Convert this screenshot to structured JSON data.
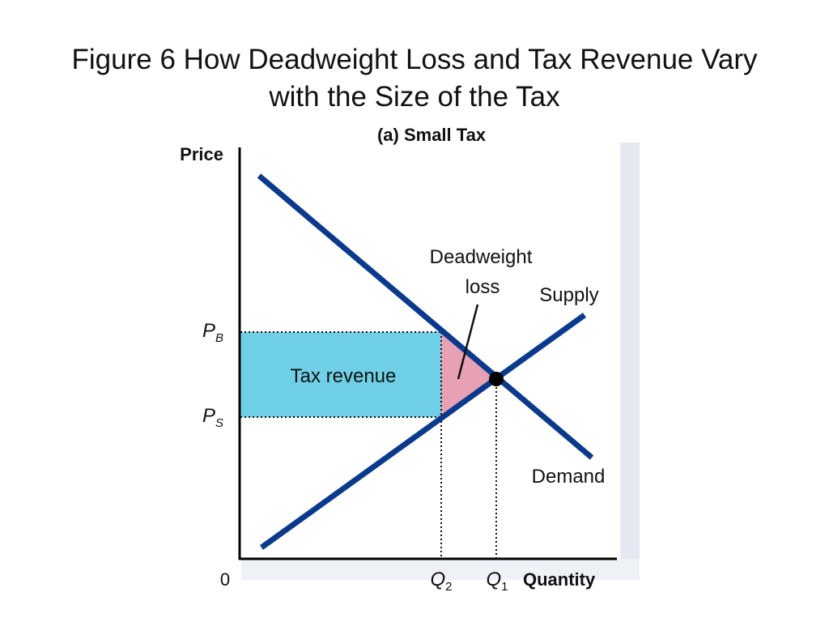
{
  "title": {
    "line1": "Figure 6 How Deadweight Loss and Tax Revenue Vary",
    "line2": "with the Size of the Tax"
  },
  "panel_title": "(a) Small Tax",
  "axes": {
    "y_label": "Price",
    "x_label": "Quantity",
    "origin_label": "0"
  },
  "price_labels": {
    "buyers": {
      "base": "P",
      "sub": "B"
    },
    "sellers": {
      "base": "P",
      "sub": "S"
    }
  },
  "quantity_labels": {
    "after_tax": {
      "base": "Q",
      "sub": "2"
    },
    "equilibrium": {
      "base": "Q",
      "sub": "1"
    }
  },
  "curve_labels": {
    "supply": "Supply",
    "demand": "Demand"
  },
  "area_labels": {
    "tax_revenue": "Tax revenue",
    "deadweight_loss_line1": "Deadweight",
    "deadweight_loss_line2": "loss"
  },
  "colors": {
    "curves": "#0b3a8c",
    "tax_revenue_fill": "#6ecfe6",
    "deadweight_fill": "#e8a0b4",
    "axes": "#000000",
    "panel_shadow": "#e4e8f0"
  }
}
